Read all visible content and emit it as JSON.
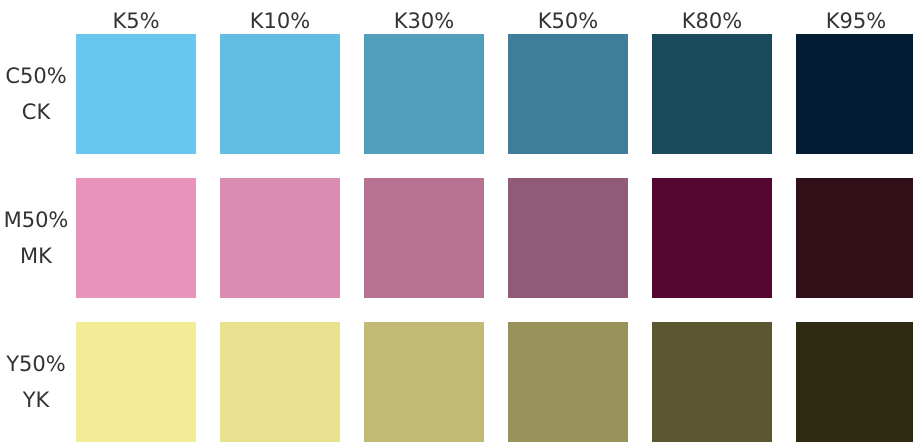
{
  "columns": [
    {
      "label": "K5%"
    },
    {
      "label": "K10%"
    },
    {
      "label": "K30%"
    },
    {
      "label": "K50%"
    },
    {
      "label": "K80%"
    },
    {
      "label": "K95%"
    }
  ],
  "rows": [
    {
      "label_line1": "C50%",
      "label_line2": "CK",
      "colors": [
        "#67c7ed",
        "#63bde2",
        "#529fbd",
        "#3e7e98",
        "#194b5d",
        "#021d33"
      ]
    },
    {
      "label_line1": "M50%",
      "label_line2": "MK",
      "colors": [
        "#e993bb",
        "#da8cb1",
        "#b77292",
        "#8f5b76",
        "#550732",
        "#300f18"
      ]
    },
    {
      "label_line1": "Y50%",
      "label_line2": "YK",
      "colors": [
        "#f3eb95",
        "#e9e18f",
        "#c3b977",
        "#98925b",
        "#5c5733",
        "#2e2b12"
      ]
    }
  ]
}
